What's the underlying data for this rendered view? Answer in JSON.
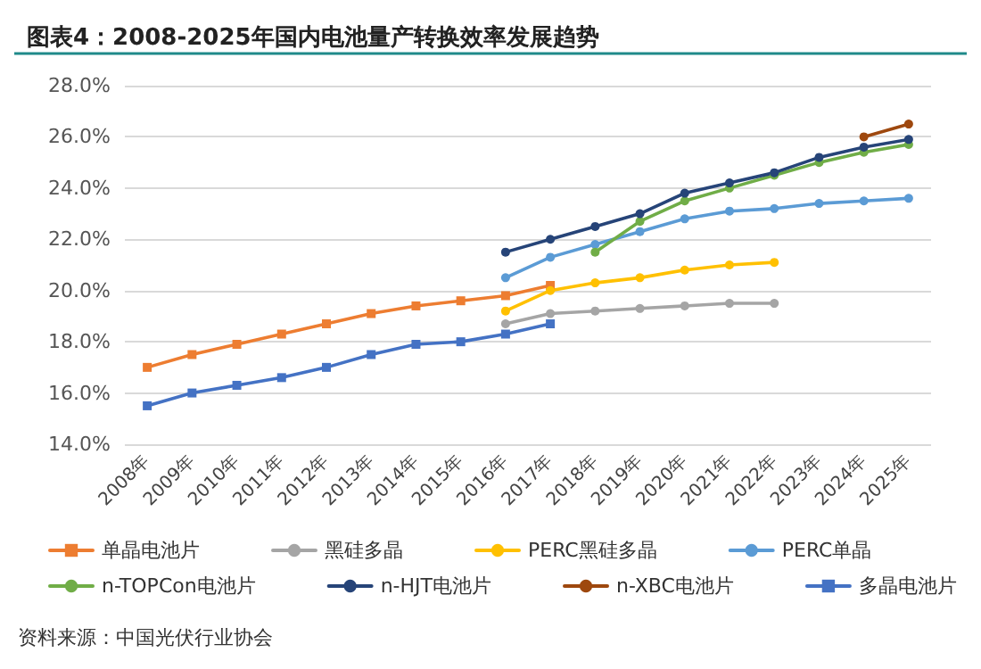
{
  "chart_data": {
    "type": "line",
    "title": "图表4：2008-2025年国内电池量产转换效率发展趋势",
    "categories": [
      "2008年",
      "2009年",
      "2010年",
      "2011年",
      "2012年",
      "2013年",
      "2014年",
      "2015年",
      "2016年",
      "2017年",
      "2018年",
      "2019年",
      "2020年",
      "2021年",
      "2022年",
      "2023年",
      "2024年",
      "2025年"
    ],
    "series": [
      {
        "name": "单晶电池片",
        "color": "#ed7d31",
        "marker": "square",
        "values": [
          17.0,
          17.5,
          17.9,
          18.3,
          18.7,
          19.1,
          19.4,
          19.6,
          19.8,
          20.2,
          null,
          null,
          null,
          null,
          null,
          null,
          null,
          null
        ]
      },
      {
        "name": "黑硅多晶",
        "color": "#a5a5a5",
        "marker": "circle",
        "values": [
          null,
          null,
          null,
          null,
          null,
          null,
          null,
          null,
          18.7,
          19.1,
          19.2,
          19.3,
          19.4,
          19.5,
          19.5,
          null,
          null,
          null
        ]
      },
      {
        "name": "PERC黑硅多晶",
        "color": "#ffc000",
        "marker": "circle",
        "values": [
          null,
          null,
          null,
          null,
          null,
          null,
          null,
          null,
          19.2,
          20.0,
          20.3,
          20.5,
          20.8,
          21.0,
          21.1,
          null,
          null,
          null
        ]
      },
      {
        "name": "PERC单晶",
        "color": "#5b9bd5",
        "marker": "circle",
        "values": [
          null,
          null,
          null,
          null,
          null,
          null,
          null,
          null,
          20.5,
          21.3,
          21.8,
          22.3,
          22.8,
          23.1,
          23.2,
          23.4,
          23.5,
          23.6
        ]
      },
      {
        "name": "n-TOPCon电池片",
        "color": "#70ad47",
        "marker": "circle",
        "values": [
          null,
          null,
          null,
          null,
          null,
          null,
          null,
          null,
          null,
          null,
          21.5,
          22.7,
          23.5,
          24.0,
          24.5,
          25.0,
          25.4,
          25.7
        ]
      },
      {
        "name": "n-HJT电池片",
        "color": "#264478",
        "marker": "circle",
        "values": [
          null,
          null,
          null,
          null,
          null,
          null,
          null,
          null,
          21.5,
          22.0,
          22.5,
          23.0,
          23.8,
          24.2,
          24.6,
          25.2,
          25.6,
          25.9
        ]
      },
      {
        "name": "n-XBC电池片",
        "color": "#9e480e",
        "marker": "circle",
        "values": [
          null,
          null,
          null,
          null,
          null,
          null,
          null,
          null,
          null,
          null,
          null,
          null,
          null,
          null,
          null,
          null,
          26.0,
          26.5
        ]
      },
      {
        "name": "多晶电池片",
        "color": "#4472c4",
        "marker": "square",
        "values": [
          15.5,
          16.0,
          16.3,
          16.6,
          17.0,
          17.5,
          17.9,
          18.0,
          18.3,
          18.7,
          null,
          null,
          null,
          null,
          null,
          null,
          null,
          null
        ]
      }
    ],
    "ylim": [
      14,
      28
    ],
    "yticks": [
      {
        "value": 14,
        "label": "14.0%"
      },
      {
        "value": 16,
        "label": "16.0%"
      },
      {
        "value": 18,
        "label": "18.0%"
      },
      {
        "value": 20,
        "label": "20.0%"
      },
      {
        "value": 22,
        "label": "22.0%"
      },
      {
        "value": 24,
        "label": "24.0%"
      },
      {
        "value": 26,
        "label": "26.0%"
      },
      {
        "value": 28,
        "label": "28.0%"
      }
    ],
    "grid": "y",
    "legend": "bottom",
    "line_style": "solid",
    "annotations": [
      "资料来源：中国光伏行业协会"
    ]
  }
}
